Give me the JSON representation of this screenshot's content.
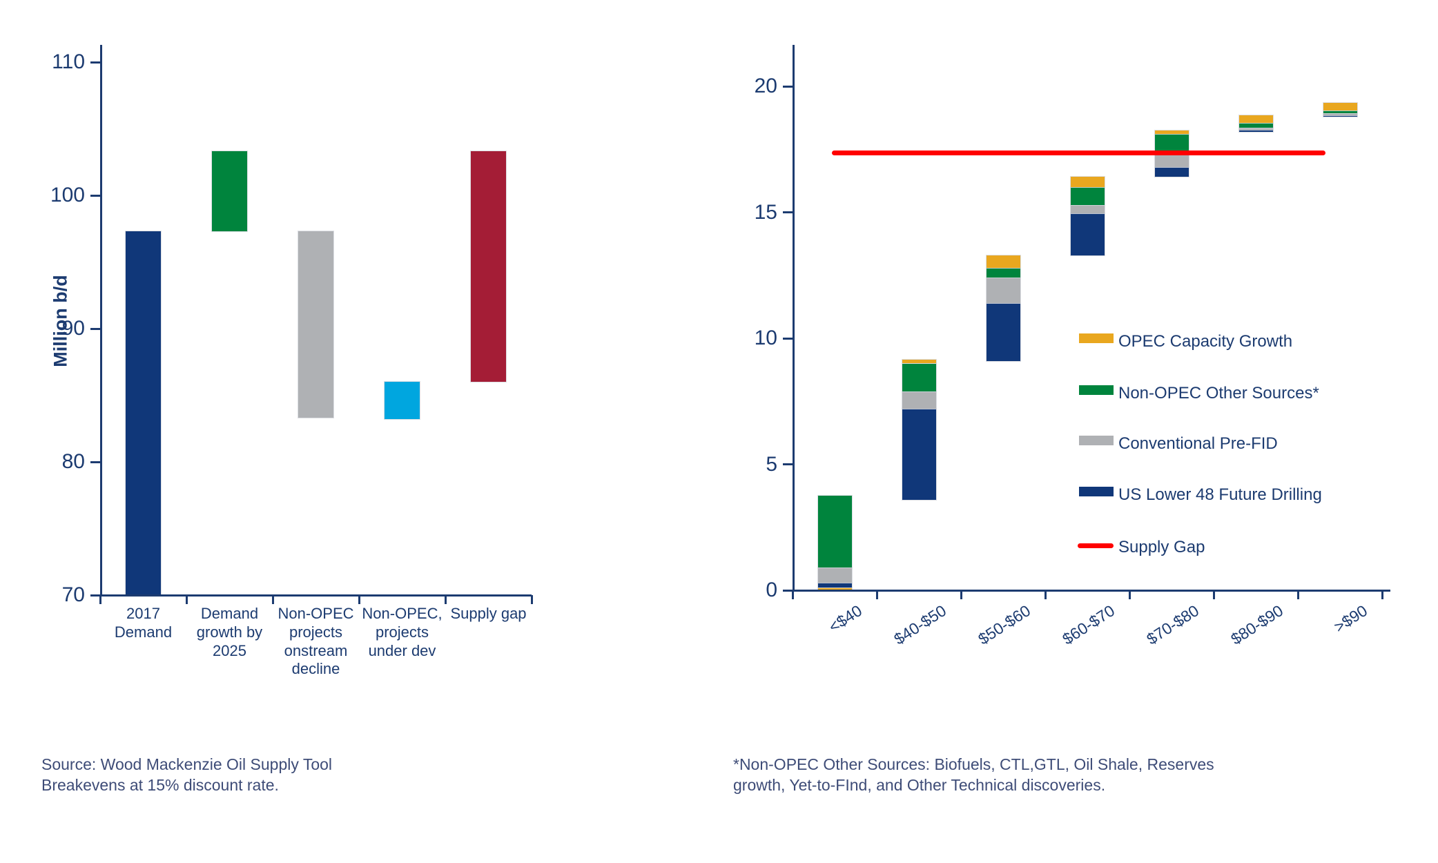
{
  "colors": {
    "navy": "#103779",
    "green": "#00843d",
    "gray": "#afb1b4",
    "cyan": "#00a6df",
    "maroon": "#a41d36",
    "orange": "#e9a71f",
    "red": "#ff0000",
    "axis": "#1c3b70",
    "text": "#1c3b70",
    "footnote": "#3e4c77"
  },
  "chart_data": [
    {
      "id": "left",
      "type": "bar",
      "subtype": "floating-waterfall",
      "title": "",
      "ylabel": "Million b/d",
      "ylim": [
        70,
        110
      ],
      "yticks": [
        70,
        80,
        90,
        100,
        110
      ],
      "grid": false,
      "categories": [
        "2017 Demand",
        "Demand growth by 2025",
        "Non-OPEC projects onstream decline",
        "Non-OPEC, projects under dev",
        "Supply gap"
      ],
      "bars": [
        {
          "category": "2017 Demand",
          "from": 70,
          "to": 97.3,
          "color_key": "navy"
        },
        {
          "category": "Demand growth by 2025",
          "from": 97.3,
          "to": 103.3,
          "color_key": "green"
        },
        {
          "category": "Non-OPEC projects onstream decline",
          "from": 83.3,
          "to": 97.3,
          "color_key": "gray"
        },
        {
          "category": "Non-OPEC, projects under dev",
          "from": 83.2,
          "to": 86.0,
          "color_key": "cyan"
        },
        {
          "category": "Supply gap",
          "from": 86.0,
          "to": 103.3,
          "color_key": "maroon"
        }
      ]
    },
    {
      "id": "right",
      "type": "bar",
      "subtype": "stacked-waterfall",
      "title": "",
      "ylabel": "",
      "ylim": [
        0,
        20
      ],
      "yticks": [
        0,
        5,
        10,
        15,
        20
      ],
      "grid": false,
      "categories": [
        "<$40",
        "$40-$50",
        "$50-$60",
        "$60-$70",
        "$70-$80",
        "$80-$90",
        ">$90"
      ],
      "bars": [
        {
          "category": "<$40",
          "segments": [
            {
              "series": "OPEC Capacity Growth",
              "color_key": "orange",
              "from": 0,
              "to": 0.1
            },
            {
              "series": "US Lower 48 Future Drilling",
              "color_key": "navy",
              "from": 0.1,
              "to": 0.3
            },
            {
              "series": "Conventional Pre-FID",
              "color_key": "gray",
              "from": 0.3,
              "to": 0.9
            },
            {
              "series": "Non-OPEC Other Sources*",
              "color_key": "green",
              "from": 0.9,
              "to": 3.75
            }
          ]
        },
        {
          "category": "$40-$50",
          "segments": [
            {
              "series": "US Lower 48 Future Drilling",
              "color_key": "navy",
              "from": 3.6,
              "to": 7.2
            },
            {
              "series": "Conventional Pre-FID",
              "color_key": "gray",
              "from": 7.2,
              "to": 7.9
            },
            {
              "series": "Non-OPEC Other Sources*",
              "color_key": "green",
              "from": 7.9,
              "to": 9.0
            },
            {
              "series": "OPEC Capacity Growth",
              "color_key": "orange",
              "from": 9.0,
              "to": 9.15
            }
          ]
        },
        {
          "category": "$50-$60",
          "segments": [
            {
              "series": "US Lower 48 Future Drilling",
              "color_key": "navy",
              "from": 9.1,
              "to": 11.4
            },
            {
              "series": "Conventional Pre-FID",
              "color_key": "gray",
              "from": 11.4,
              "to": 12.4
            },
            {
              "series": "Non-OPEC Other Sources*",
              "color_key": "green",
              "from": 12.4,
              "to": 12.8
            },
            {
              "series": "OPEC Capacity Growth",
              "color_key": "orange",
              "from": 12.8,
              "to": 13.3
            }
          ]
        },
        {
          "category": "$60-$70",
          "segments": [
            {
              "series": "US Lower 48 Future Drilling",
              "color_key": "navy",
              "from": 13.3,
              "to": 14.95
            },
            {
              "series": "Conventional Pre-FID",
              "color_key": "gray",
              "from": 14.95,
              "to": 15.3
            },
            {
              "series": "Non-OPEC Other Sources*",
              "color_key": "green",
              "from": 15.3,
              "to": 16.0
            },
            {
              "series": "OPEC Capacity Growth",
              "color_key": "orange",
              "from": 16.0,
              "to": 16.4
            }
          ]
        },
        {
          "category": "$70-$80",
          "segments": [
            {
              "series": "US Lower 48 Future Drilling",
              "color_key": "navy",
              "from": 16.4,
              "to": 16.8
            },
            {
              "series": "Conventional Pre-FID",
              "color_key": "gray",
              "from": 16.8,
              "to": 17.4
            },
            {
              "series": "Non-OPEC Other Sources*",
              "color_key": "green",
              "from": 17.4,
              "to": 18.1
            },
            {
              "series": "OPEC Capacity Growth",
              "color_key": "orange",
              "from": 18.1,
              "to": 18.25
            }
          ]
        },
        {
          "category": "$80-$90",
          "segments": [
            {
              "series": "US Lower 48 Future Drilling",
              "color_key": "navy",
              "from": 18.2,
              "to": 18.28
            },
            {
              "series": "Conventional Pre-FID",
              "color_key": "gray",
              "from": 18.28,
              "to": 18.35
            },
            {
              "series": "Non-OPEC Other Sources*",
              "color_key": "green",
              "from": 18.35,
              "to": 18.55
            },
            {
              "series": "OPEC Capacity Growth",
              "color_key": "orange",
              "from": 18.55,
              "to": 18.85
            }
          ]
        },
        {
          "category": ">$90",
          "segments": [
            {
              "series": "US Lower 48 Future Drilling",
              "color_key": "navy",
              "from": 18.8,
              "to": 18.84
            },
            {
              "series": "Conventional Pre-FID",
              "color_key": "gray",
              "from": 18.84,
              "to": 18.92
            },
            {
              "series": "Non-OPEC Other Sources*",
              "color_key": "green",
              "from": 18.92,
              "to": 19.05
            },
            {
              "series": "OPEC Capacity Growth",
              "color_key": "orange",
              "from": 19.05,
              "to": 19.35
            }
          ]
        }
      ],
      "supply_gap_line": {
        "label": "Supply Gap",
        "value": 17.35,
        "color_key": "red"
      },
      "legend_position": "inside-right"
    }
  ],
  "legend": {
    "items": [
      {
        "key": "opec",
        "label": "OPEC Capacity Growth",
        "color_key": "orange",
        "swatch": "rect"
      },
      {
        "key": "nonopec",
        "label": "Non-OPEC Other Sources*",
        "color_key": "green",
        "swatch": "rect"
      },
      {
        "key": "prefid",
        "label": "Conventional Pre-FID",
        "color_key": "gray",
        "swatch": "rect"
      },
      {
        "key": "us48",
        "label": "US Lower 48 Future Drilling",
        "color_key": "navy",
        "swatch": "rect"
      },
      {
        "key": "gap",
        "label": "Supply Gap",
        "color_key": "red",
        "swatch": "line"
      }
    ]
  },
  "footnotes": {
    "left_lines": [
      "Source: Wood Mackenzie Oil Supply Tool",
      "Breakevens at 15% discount rate."
    ],
    "right_lines": [
      "*Non-OPEC Other Sources: Biofuels, CTL,GTL, Oil Shale, Reserves",
      "growth, Yet-to-FInd, and Other Technical discoveries."
    ]
  }
}
